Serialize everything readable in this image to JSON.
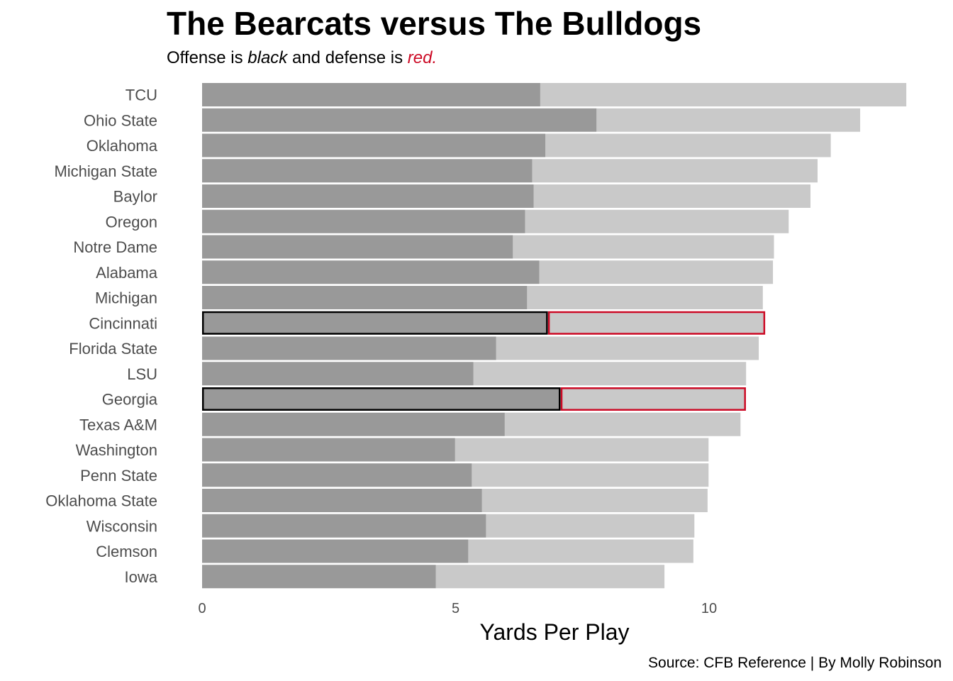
{
  "chart_data": {
    "type": "bar",
    "orientation": "horizontal",
    "title": "The Bearcats versus The Bulldogs",
    "subtitle": {
      "parts": [
        {
          "text": "Offense is ",
          "style": "normal"
        },
        {
          "text": "black",
          "style": "italic"
        },
        {
          "text": " and defense is ",
          "style": "normal"
        },
        {
          "text": "red.",
          "style": "italic-red"
        }
      ]
    },
    "xlabel": "Yards Per Play",
    "ylabel": "",
    "source": "Source: CFB Reference | By Molly Robinson",
    "xlim": [
      0,
      14
    ],
    "xticks": [
      {
        "value": 0,
        "label": "0"
      },
      {
        "value": 5,
        "label": "5"
      },
      {
        "value": 10,
        "label": "10"
      }
    ],
    "grid": false,
    "categories": [
      "TCU",
      "Ohio State",
      "Oklahoma",
      "Michigan State",
      "Baylor",
      "Oregon",
      "Notre Dame",
      "Alabama",
      "Michigan",
      "Cincinnati",
      "Florida State",
      "LSU",
      "Georgia",
      "Texas A&M",
      "Washington",
      "Penn State",
      "Oklahoma State",
      "Wisconsin",
      "Clemson",
      "Iowa"
    ],
    "highlighted": [
      "Cincinnati",
      "Georgia"
    ],
    "series": [
      {
        "values": [
          6.67,
          7.78,
          6.77,
          6.51,
          6.54,
          6.37,
          6.13,
          6.65,
          6.41,
          6.82,
          5.8,
          5.35,
          7.07,
          5.97,
          4.99,
          5.32,
          5.52,
          5.6,
          5.25,
          4.61
        ]
      },
      {
        "values": [
          7.22,
          5.2,
          5.63,
          5.63,
          5.46,
          5.2,
          5.15,
          4.61,
          4.65,
          4.29,
          5.18,
          5.38,
          3.66,
          4.65,
          5.0,
          4.67,
          4.45,
          4.11,
          4.44,
          4.51
        ]
      }
    ],
    "colors": {
      "offense": "#999999",
      "defense": "#c9c9c9",
      "offense_outline": "#000000",
      "defense_outline": "#cc0a25"
    }
  }
}
